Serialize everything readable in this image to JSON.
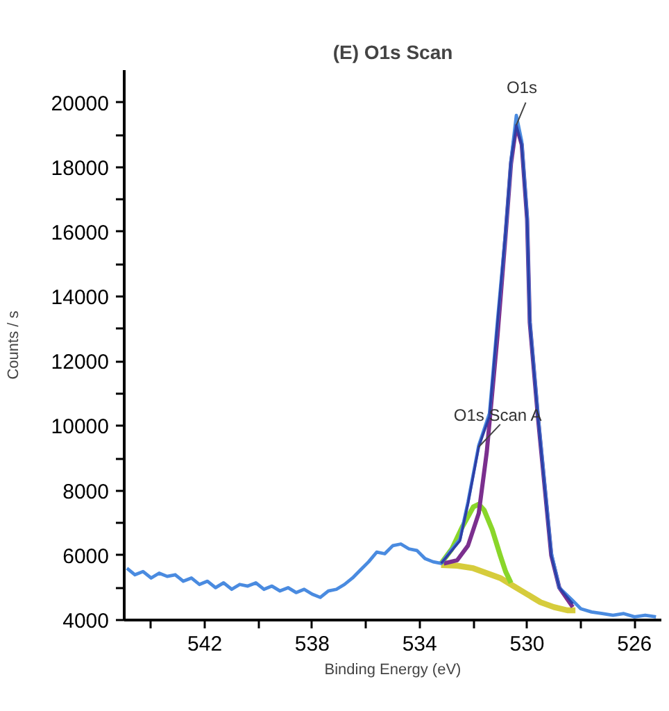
{
  "chart_data": {
    "type": "line",
    "title": "(E) O1s Scan",
    "xlabel": "Binding Energy (eV)",
    "ylabel": "Counts / s",
    "xlim": [
      545,
      525
    ],
    "ylim": [
      4000,
      21000
    ],
    "xticks": [
      {
        "value": 544,
        "label": null
      },
      542,
      {
        "value": 540,
        "label": null
      },
      538,
      {
        "value": 536,
        "label": null
      },
      534,
      {
        "value": 532,
        "label": null
      },
      530,
      {
        "value": 528,
        "label": null
      },
      526
    ],
    "yticks": [
      4000,
      {
        "value": 5000,
        "label": null
      },
      6000,
      {
        "value": 7000,
        "label": null
      },
      8000,
      {
        "value": 9000,
        "label": null
      },
      10000,
      {
        "value": 11000,
        "label": null
      },
      12000,
      {
        "value": 13000,
        "label": null
      },
      14000,
      {
        "value": 15000,
        "label": null
      },
      16000,
      {
        "value": 17000,
        "label": null
      },
      18000,
      {
        "value": 19000,
        "label": null
      },
      20000
    ],
    "grid": false,
    "marker": "none",
    "line_style": "solid",
    "series": [
      {
        "color": "#d6cc3c",
        "x": [
          533.2,
          532.6,
          532,
          531.5,
          531,
          530.5,
          530,
          529.5,
          529,
          528.5,
          528.2
        ],
        "values": [
          5700,
          5680,
          5600,
          5450,
          5300,
          5050,
          4800,
          4550,
          4400,
          4300,
          4300
        ]
      },
      {
        "color": "#8ad62a",
        "x": [
          533.2,
          532.8,
          532.4,
          532,
          531.8,
          531.6,
          531.3,
          531,
          530.8,
          530.6
        ],
        "values": [
          5750,
          6200,
          6900,
          7500,
          7580,
          7400,
          6800,
          6000,
          5500,
          5150
        ]
      },
      {
        "color": "#7b2f8e",
        "x": [
          533.1,
          532.6,
          532.2,
          531.8,
          531.5,
          531.1,
          530.8,
          530.6,
          530.4,
          530.2,
          530,
          529.9,
          529.6,
          529.1,
          528.8,
          528.3
        ],
        "values": [
          5750,
          5850,
          6300,
          7300,
          9200,
          12800,
          15900,
          18100,
          19300,
          18700,
          16400,
          13200,
          10300,
          6000,
          5000,
          4400
        ]
      },
      {
        "color": "#4a8be0",
        "x": [
          544.9,
          544.6,
          544.3,
          544,
          543.7,
          543.4,
          543.1,
          542.8,
          542.5,
          542.2,
          541.9,
          541.6,
          541.3,
          541,
          540.7,
          540.4,
          540.1,
          539.8,
          539.5,
          539.2,
          538.9,
          538.6,
          538.3,
          538,
          537.7,
          537.4,
          537.1,
          536.8,
          536.5,
          536.2,
          535.9,
          535.6,
          535.3,
          535,
          534.7,
          534.4,
          534.1,
          533.8,
          533.5,
          533.2,
          532.9,
          532.5,
          532.2,
          531.8,
          531.4,
          531.1,
          530.8,
          530.6,
          530.4,
          530.2,
          530,
          529.9,
          529.6,
          529.1,
          528.8,
          528.3,
          528,
          527.6,
          527.2,
          526.8,
          526.4,
          526,
          525.6,
          525.2
        ],
        "values": [
          5600,
          5400,
          5500,
          5300,
          5450,
          5350,
          5400,
          5200,
          5300,
          5100,
          5200,
          5000,
          5150,
          4950,
          5100,
          5050,
          5150,
          4950,
          5050,
          4900,
          5000,
          4850,
          4950,
          4800,
          4700,
          4900,
          4950,
          5100,
          5300,
          5550,
          5800,
          6100,
          6050,
          6300,
          6350,
          6200,
          6150,
          5900,
          5800,
          5750,
          6080,
          6500,
          7650,
          9400,
          10390,
          13270,
          16000,
          18200,
          19600,
          18800,
          16500,
          13270,
          10390,
          6080,
          5000,
          4600,
          4350,
          4250,
          4200,
          4150,
          4200,
          4100,
          4150,
          4100
        ]
      },
      {
        "color": "#2e3fa6",
        "x": [
          533.2,
          532.9,
          532.5,
          532.2,
          531.8,
          531.4,
          531.1,
          530.8,
          530.6,
          530.4,
          530.2,
          530,
          529.9,
          529.6,
          529.1,
          528.8,
          528.3
        ],
        "values": [
          5750,
          6050,
          6450,
          7600,
          9350,
          10300,
          13200,
          16000,
          18200,
          19300,
          18700,
          16400,
          13200,
          10300,
          6000,
          5000,
          4500
        ]
      }
    ],
    "annotations": [
      {
        "text": "O1s",
        "x": 530.4,
        "y": 19300
      },
      {
        "text": "O1s Scan A",
        "x": 531.8,
        "y": 9350
      }
    ]
  }
}
